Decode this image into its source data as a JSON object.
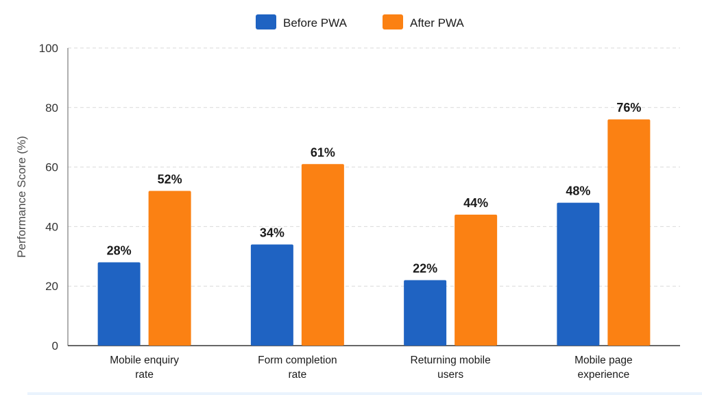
{
  "chart_data": {
    "type": "bar",
    "categories": [
      [
        "Mobile enquiry",
        "rate"
      ],
      [
        "Form completion",
        "rate"
      ],
      [
        "Returning mobile",
        "users"
      ],
      [
        "Mobile page",
        "experience"
      ]
    ],
    "series": [
      {
        "name": "Before PWA",
        "color": "#1f63c2",
        "values": [
          28,
          34,
          22,
          48
        ]
      },
      {
        "name": "After PWA",
        "color": "#fb8113",
        "values": [
          52,
          61,
          44,
          76
        ]
      }
    ],
    "data_labels": [
      [
        "28%",
        "34%",
        "22%",
        "48%"
      ],
      [
        "52%",
        "61%",
        "44%",
        "76%"
      ]
    ],
    "title": "",
    "xlabel": "",
    "ylabel": "Performance Score (%)",
    "ylim": [
      0,
      100
    ],
    "yticks": [
      0,
      20,
      40,
      60,
      80,
      100
    ],
    "grid": true,
    "legend_position": "top-center"
  }
}
